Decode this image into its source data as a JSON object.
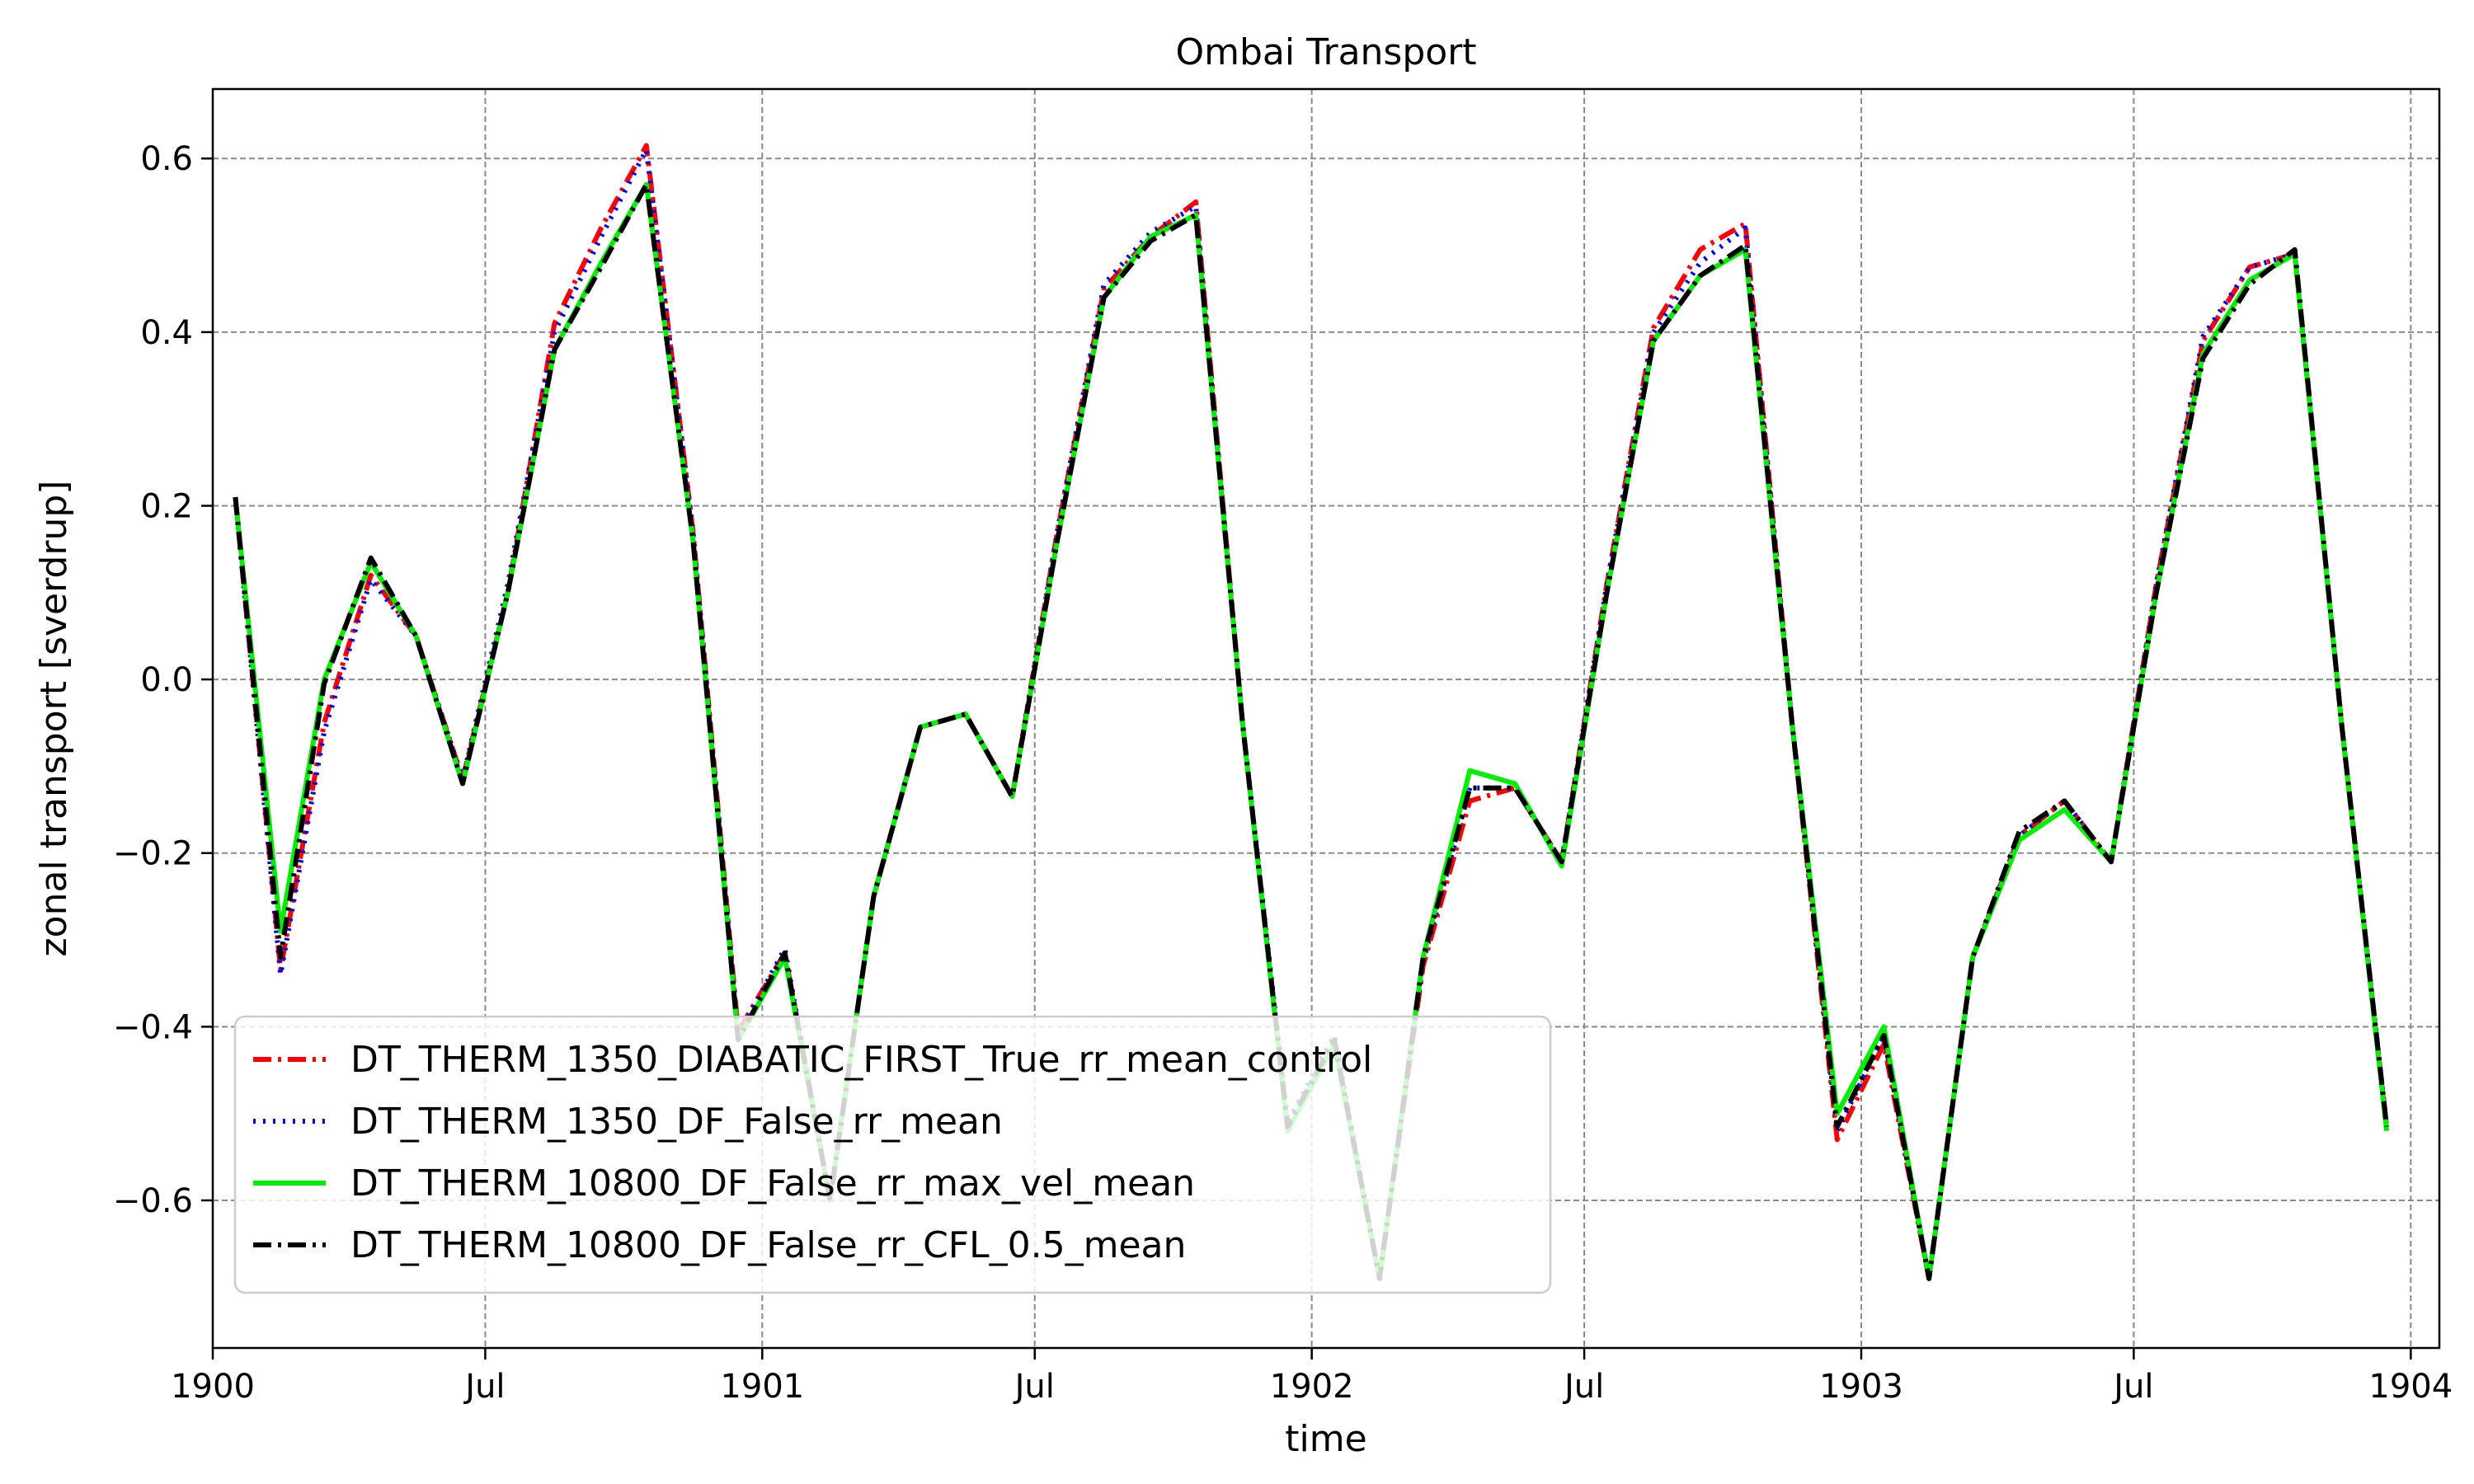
{
  "chart_data": {
    "type": "line",
    "title": "Ombai Transport",
    "xlabel": "time",
    "ylabel": "zonal transport [sverdrup]",
    "xlim": [
      "1900-01-01",
      "1904-01-20"
    ],
    "ylim": [
      -0.77,
      0.68
    ],
    "grid": true,
    "legend_position": "lower-left",
    "xticks": [
      {
        "date": "1900-01-01",
        "label": "1900"
      },
      {
        "date": "1900-07-01",
        "label": "Jul"
      },
      {
        "date": "1901-01-01",
        "label": "1901"
      },
      {
        "date": "1901-07-01",
        "label": "Jul"
      },
      {
        "date": "1902-01-01",
        "label": "1902"
      },
      {
        "date": "1902-07-01",
        "label": "Jul"
      },
      {
        "date": "1903-01-01",
        "label": "1903"
      },
      {
        "date": "1903-07-01",
        "label": "Jul"
      },
      {
        "date": "1904-01-01",
        "label": "1904"
      }
    ],
    "yticks": [
      {
        "value": 0.6,
        "label": "0.6"
      },
      {
        "value": 0.4,
        "label": "0.4"
      },
      {
        "value": 0.2,
        "label": "0.2"
      },
      {
        "value": 0.0,
        "label": "0.0"
      },
      {
        "value": -0.2,
        "label": "−0.2"
      },
      {
        "value": -0.4,
        "label": "−0.4"
      },
      {
        "value": -0.6,
        "label": "−0.6"
      }
    ],
    "x": [
      "1900-01-16",
      "1900-02-15",
      "1900-03-16",
      "1900-04-16",
      "1900-05-16",
      "1900-06-16",
      "1900-07-16",
      "1900-08-16",
      "1900-09-16",
      "1900-10-16",
      "1900-11-16",
      "1900-12-16",
      "1901-01-16",
      "1901-02-15",
      "1901-03-16",
      "1901-04-16",
      "1901-05-16",
      "1901-06-16",
      "1901-07-16",
      "1901-08-16",
      "1901-09-16",
      "1901-10-16",
      "1901-11-16",
      "1901-12-16",
      "1902-01-16",
      "1902-02-15",
      "1902-03-16",
      "1902-04-16",
      "1902-05-16",
      "1902-06-16",
      "1902-07-16",
      "1902-08-16",
      "1902-09-16",
      "1902-10-16",
      "1902-11-16",
      "1902-12-16",
      "1903-01-16",
      "1903-02-15",
      "1903-03-16",
      "1903-04-16",
      "1903-05-16",
      "1903-06-16",
      "1903-07-16",
      "1903-08-16",
      "1903-09-16",
      "1903-10-16",
      "1903-11-16",
      "1903-12-16"
    ],
    "series": [
      {
        "name": "DT_THERM_1350_DIABATIC_FIRST_True_rr_mean_control",
        "color": "#ff0000",
        "dash": "dashdot",
        "values": [
          0.21,
          -0.335,
          -0.05,
          0.12,
          0.05,
          -0.115,
          0.1,
          0.41,
          0.52,
          0.615,
          0.17,
          -0.405,
          -0.315,
          -0.6,
          -0.25,
          -0.055,
          -0.04,
          -0.135,
          0.17,
          0.45,
          0.51,
          0.55,
          -0.05,
          -0.52,
          -0.42,
          -0.69,
          -0.33,
          -0.14,
          -0.125,
          -0.21,
          0.11,
          0.405,
          0.495,
          0.525,
          -0.05,
          -0.53,
          -0.42,
          -0.69,
          -0.32,
          -0.18,
          -0.14,
          -0.21,
          0.11,
          0.39,
          0.475,
          0.49,
          -0.05,
          -0.515
        ]
      },
      {
        "name": "DT_THERM_1350_DF_False_rr_mean",
        "color": "#0000ee",
        "dash": "dotted",
        "values": [
          0.21,
          -0.34,
          -0.06,
          0.115,
          0.05,
          -0.115,
          0.11,
          0.4,
          0.51,
          0.61,
          0.17,
          -0.41,
          -0.31,
          -0.6,
          -0.25,
          -0.055,
          -0.04,
          -0.135,
          0.17,
          0.455,
          0.515,
          0.545,
          -0.05,
          -0.51,
          -0.41,
          -0.69,
          -0.325,
          -0.125,
          -0.125,
          -0.21,
          0.11,
          0.4,
          0.48,
          0.52,
          -0.05,
          -0.52,
          -0.41,
          -0.69,
          -0.32,
          -0.18,
          -0.14,
          -0.21,
          0.11,
          0.395,
          0.475,
          0.49,
          -0.05,
          -0.515
        ]
      },
      {
        "name": "DT_THERM_10800_DF_False_rr_max_vel_mean",
        "color": "#00ee00",
        "dash": "solid",
        "values": [
          0.21,
          -0.29,
          0.0,
          0.135,
          0.05,
          -0.12,
          0.1,
          0.38,
          0.48,
          0.57,
          0.16,
          -0.415,
          -0.32,
          -0.6,
          -0.25,
          -0.055,
          -0.04,
          -0.135,
          0.16,
          0.44,
          0.51,
          0.535,
          -0.05,
          -0.52,
          -0.42,
          -0.69,
          -0.32,
          -0.105,
          -0.12,
          -0.215,
          0.1,
          0.39,
          0.465,
          0.495,
          -0.05,
          -0.5,
          -0.4,
          -0.69,
          -0.32,
          -0.185,
          -0.15,
          -0.21,
          0.1,
          0.375,
          0.46,
          0.49,
          -0.05,
          -0.52
        ]
      },
      {
        "name": "DT_THERM_10800_DF_False_rr_CFL_0.5_mean",
        "color": "#000000",
        "dash": "dashdot",
        "values": [
          0.21,
          -0.32,
          -0.005,
          0.14,
          0.05,
          -0.12,
          0.1,
          0.38,
          0.475,
          0.57,
          0.16,
          -0.415,
          -0.315,
          -0.6,
          -0.25,
          -0.055,
          -0.04,
          -0.135,
          0.16,
          0.44,
          0.505,
          0.535,
          -0.05,
          -0.515,
          -0.415,
          -0.69,
          -0.32,
          -0.125,
          -0.125,
          -0.21,
          0.1,
          0.39,
          0.465,
          0.5,
          -0.05,
          -0.515,
          -0.41,
          -0.69,
          -0.32,
          -0.175,
          -0.14,
          -0.21,
          0.1,
          0.37,
          0.455,
          0.495,
          -0.05,
          -0.515
        ]
      }
    ]
  }
}
